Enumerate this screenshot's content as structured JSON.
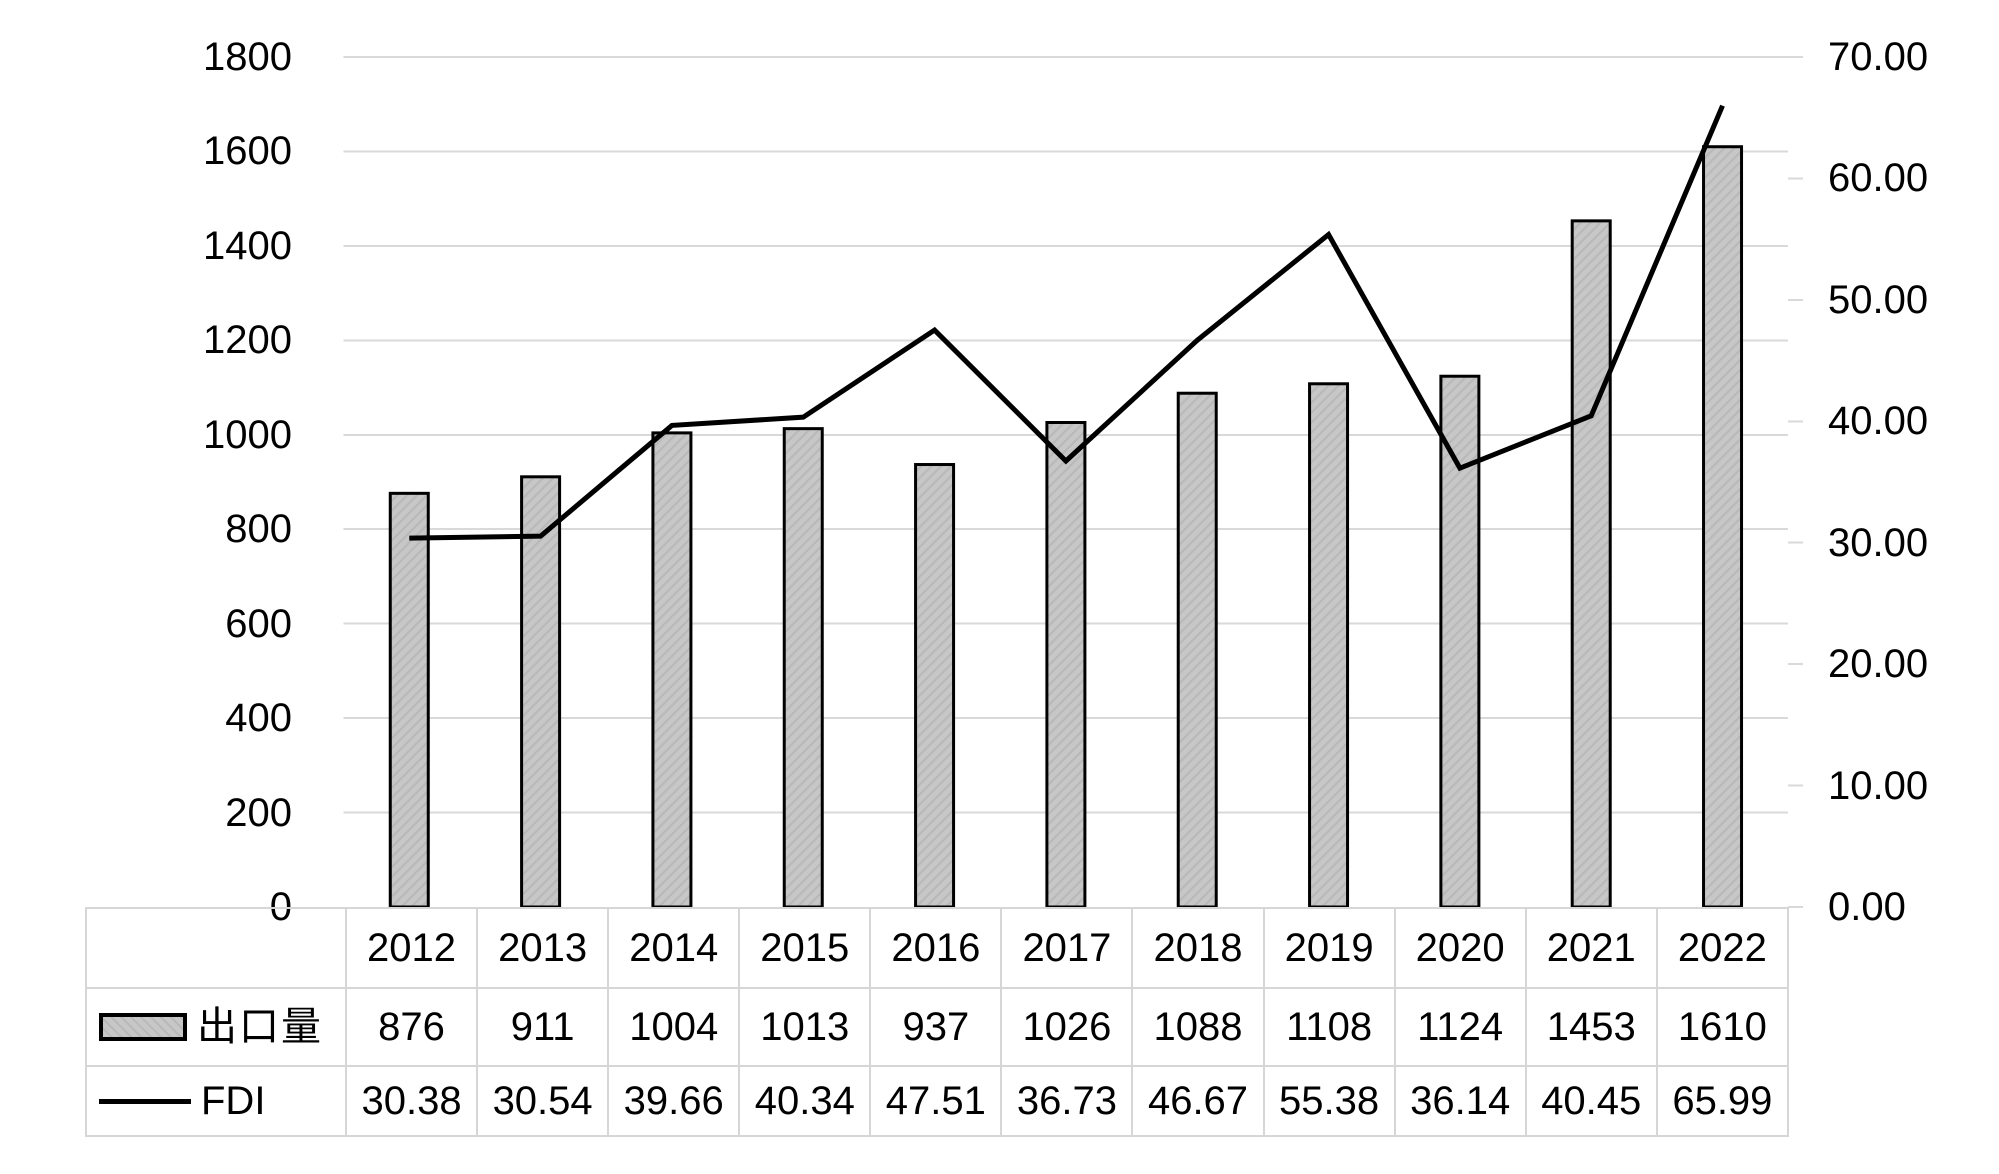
{
  "chart_data": {
    "type": "combo",
    "categories": [
      "2012",
      "2013",
      "2014",
      "2015",
      "2016",
      "2017",
      "2018",
      "2019",
      "2020",
      "2021",
      "2022"
    ],
    "series": [
      {
        "name": "出口量",
        "type": "bar",
        "axis": "left",
        "values": [
          876,
          911,
          1004,
          1013,
          937,
          1026,
          1088,
          1108,
          1124,
          1453,
          1610
        ]
      },
      {
        "name": "FDI",
        "type": "line",
        "axis": "right",
        "values": [
          30.38,
          30.54,
          39.66,
          40.34,
          47.51,
          36.73,
          46.67,
          55.38,
          36.14,
          40.45,
          65.99
        ]
      }
    ],
    "title": "",
    "xlabel": "",
    "ylabel": "",
    "left_axis": {
      "min": 0,
      "max": 1800,
      "step": 200,
      "decimals": 0
    },
    "right_axis": {
      "min": 0,
      "max": 70,
      "step": 10,
      "decimals": 2
    },
    "grid": true,
    "legend_position": "table-left",
    "colors": {
      "bar_fill": "#c7c7c7",
      "bar_hatch": "#b9b9b9",
      "bar_border": "#000000",
      "line": "#000000",
      "gridline": "#d9d9d9",
      "table_border": "#d6d6d6",
      "text": "#000000",
      "background": "#ffffff"
    }
  }
}
